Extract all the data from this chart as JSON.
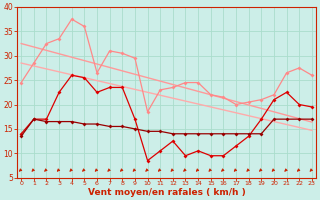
{
  "xlabel": "Vent moyen/en rafales ( km/h )",
  "x": [
    0,
    1,
    2,
    3,
    4,
    5,
    6,
    7,
    8,
    9,
    10,
    11,
    12,
    13,
    14,
    15,
    16,
    17,
    18,
    19,
    20,
    21,
    22,
    23
  ],
  "ylim": [
    5,
    40
  ],
  "yticks": [
    5,
    10,
    15,
    20,
    25,
    30,
    35,
    40
  ],
  "xlim": [
    -0.3,
    23.3
  ],
  "background_color": "#cceee8",
  "grid_color": "#aaddcc",
  "series": {
    "trend1": {
      "y": [
        32.5,
        31.8,
        31.1,
        30.4,
        29.7,
        29.0,
        28.3,
        27.6,
        26.9,
        26.2,
        25.5,
        24.8,
        24.1,
        23.4,
        22.7,
        22.0,
        21.3,
        20.6,
        19.9,
        19.2,
        18.5,
        17.8,
        17.1,
        16.4
      ],
      "color": "#ff9999",
      "lw": 1.0,
      "marker": null
    },
    "trend2": {
      "y": [
        28.5,
        27.9,
        27.3,
        26.7,
        26.1,
        25.5,
        24.9,
        24.3,
        23.7,
        23.1,
        22.5,
        21.9,
        21.3,
        20.7,
        20.1,
        19.5,
        18.9,
        18.3,
        17.7,
        17.1,
        16.5,
        15.9,
        15.3,
        14.7
      ],
      "color": "#ffaaaa",
      "lw": 1.0,
      "marker": null
    },
    "jagged_upper": {
      "y": [
        24.5,
        28.5,
        32.5,
        33.5,
        37.5,
        36.0,
        26.5,
        31.0,
        30.5,
        29.5,
        18.5,
        23.0,
        23.5,
        24.5,
        24.5,
        22.0,
        21.5,
        20.0,
        20.5,
        21.0,
        22.0,
        26.5,
        27.5,
        26.0
      ],
      "color": "#ff8888",
      "lw": 0.9,
      "marker": "D",
      "ms": 2.0
    },
    "jagged_mid": {
      "y": [
        14.0,
        17.0,
        17.0,
        22.5,
        26.0,
        25.5,
        22.5,
        23.5,
        23.5,
        17.0,
        8.5,
        10.5,
        12.5,
        9.5,
        10.5,
        9.5,
        9.5,
        11.5,
        13.5,
        17.0,
        21.0,
        22.5,
        20.0,
        19.5
      ],
      "color": "#dd0000",
      "lw": 0.9,
      "marker": "D",
      "ms": 2.0
    },
    "flat_low": {
      "y": [
        13.5,
        17.0,
        16.5,
        16.5,
        16.5,
        16.0,
        16.0,
        15.5,
        15.5,
        15.0,
        14.5,
        14.5,
        14.0,
        14.0,
        14.0,
        14.0,
        14.0,
        14.0,
        14.0,
        14.0,
        17.0,
        17.0,
        17.0,
        17.0
      ],
      "color": "#990000",
      "lw": 0.9,
      "marker": "D",
      "ms": 2.0
    }
  },
  "arrow_color": "#cc2200",
  "axis_color": "#cc2200",
  "tick_color": "#cc2200",
  "xlabel_color": "#cc2200",
  "xlabel_fontsize": 6.5,
  "ytick_fontsize": 5.5,
  "xtick_fontsize": 4.5
}
